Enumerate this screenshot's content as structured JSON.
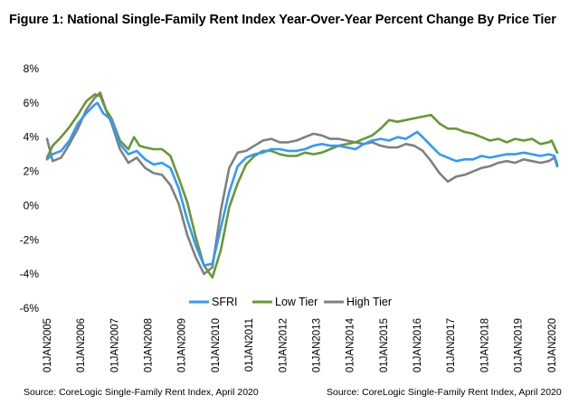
{
  "title": "Figure 1: National Single-Family Rent Index Year-Over-Year Percent Change By Price Tier",
  "sources": [
    "Source: CoreLogic Single-Family  Rent Index, April 2020",
    "Source: CoreLogic Single-Family  Rent Index, April 2020"
  ],
  "chart_data": {
    "type": "line",
    "title": "Figure 1: National Single-Family Rent Index Year-Over-Year Percent Change By Price Tier",
    "xlabel": "",
    "ylabel": "",
    "ylim": [
      -6,
      8
    ],
    "xlim": [
      "2005-01",
      "2020-03"
    ],
    "y_ticks": [
      "8%",
      "6%",
      "4%",
      "2%",
      "0%",
      "-2%",
      "-4%",
      "-6%"
    ],
    "x_ticks": [
      "01JAN2005",
      "01JAN2006",
      "01JAN2007",
      "01JAN2008",
      "01JAN2009",
      "01JAN2010",
      "01JAN2011",
      "01JAN2012",
      "01JAN2013",
      "01JAN2014",
      "01JAN2015",
      "01JAN2016",
      "01JAN2017",
      "01JAN2018",
      "01JAN2019",
      "01JAN2020"
    ],
    "grid": false,
    "legend_position": "bottom",
    "series": [
      {
        "name": "SFRI",
        "color": "#3399ff",
        "points": [
          [
            "2005-01",
            2.7
          ],
          [
            "2005-03",
            3.0
          ],
          [
            "2005-06",
            3.2
          ],
          [
            "2005-09",
            3.8
          ],
          [
            "2005-12",
            4.8
          ],
          [
            "2006-03",
            5.4
          ],
          [
            "2006-06",
            5.9
          ],
          [
            "2006-07",
            6.0
          ],
          [
            "2006-09",
            5.4
          ],
          [
            "2006-12",
            5.0
          ],
          [
            "2007-03",
            3.6
          ],
          [
            "2007-06",
            3.0
          ],
          [
            "2007-09",
            3.2
          ],
          [
            "2007-12",
            2.7
          ],
          [
            "2008-03",
            2.4
          ],
          [
            "2008-06",
            2.5
          ],
          [
            "2008-09",
            2.2
          ],
          [
            "2008-12",
            1.0
          ],
          [
            "2009-03",
            -0.8
          ],
          [
            "2009-06",
            -2.3
          ],
          [
            "2009-09",
            -3.5
          ],
          [
            "2009-12",
            -3.4
          ],
          [
            "2010-03",
            -1.3
          ],
          [
            "2010-06",
            0.8
          ],
          [
            "2010-09",
            2.3
          ],
          [
            "2010-12",
            2.8
          ],
          [
            "2011-03",
            3.0
          ],
          [
            "2011-06",
            3.1
          ],
          [
            "2011-09",
            3.3
          ],
          [
            "2011-12",
            3.3
          ],
          [
            "2012-03",
            3.2
          ],
          [
            "2012-06",
            3.2
          ],
          [
            "2012-09",
            3.3
          ],
          [
            "2012-12",
            3.5
          ],
          [
            "2013-03",
            3.6
          ],
          [
            "2013-06",
            3.5
          ],
          [
            "2013-09",
            3.5
          ],
          [
            "2013-12",
            3.4
          ],
          [
            "2014-03",
            3.3
          ],
          [
            "2014-06",
            3.6
          ],
          [
            "2014-09",
            3.8
          ],
          [
            "2014-12",
            3.9
          ],
          [
            "2015-03",
            3.8
          ],
          [
            "2015-06",
            4.0
          ],
          [
            "2015-09",
            3.9
          ],
          [
            "2015-12",
            4.2
          ],
          [
            "2016-01",
            4.3
          ],
          [
            "2016-03",
            4.0
          ],
          [
            "2016-06",
            3.5
          ],
          [
            "2016-09",
            3.0
          ],
          [
            "2016-12",
            2.8
          ],
          [
            "2017-03",
            2.6
          ],
          [
            "2017-06",
            2.7
          ],
          [
            "2017-09",
            2.7
          ],
          [
            "2017-12",
            2.9
          ],
          [
            "2018-03",
            2.8
          ],
          [
            "2018-06",
            2.9
          ],
          [
            "2018-09",
            3.0
          ],
          [
            "2018-12",
            3.0
          ],
          [
            "2019-03",
            3.1
          ],
          [
            "2019-06",
            3.0
          ],
          [
            "2019-09",
            2.9
          ],
          [
            "2019-12",
            3.0
          ],
          [
            "2020-02",
            2.9
          ],
          [
            "2020-03",
            2.4
          ]
        ]
      },
      {
        "name": "Low Tier",
        "color": "#669933",
        "points": [
          [
            "2005-01",
            2.8
          ],
          [
            "2005-03",
            3.5
          ],
          [
            "2005-06",
            4.0
          ],
          [
            "2005-09",
            4.6
          ],
          [
            "2005-12",
            5.3
          ],
          [
            "2006-03",
            6.1
          ],
          [
            "2006-06",
            6.5
          ],
          [
            "2006-08",
            6.4
          ],
          [
            "2006-10",
            5.6
          ],
          [
            "2006-12",
            5.1
          ],
          [
            "2007-03",
            3.8
          ],
          [
            "2007-06",
            3.3
          ],
          [
            "2007-08",
            4.0
          ],
          [
            "2007-10",
            3.5
          ],
          [
            "2007-12",
            3.4
          ],
          [
            "2008-03",
            3.3
          ],
          [
            "2008-06",
            3.3
          ],
          [
            "2008-09",
            2.9
          ],
          [
            "2008-12",
            1.6
          ],
          [
            "2009-03",
            0.2
          ],
          [
            "2009-06",
            -1.8
          ],
          [
            "2009-09",
            -3.5
          ],
          [
            "2009-12",
            -4.2
          ],
          [
            "2010-03",
            -2.6
          ],
          [
            "2010-06",
            -0.1
          ],
          [
            "2010-09",
            1.3
          ],
          [
            "2010-12",
            2.4
          ],
          [
            "2011-03",
            2.9
          ],
          [
            "2011-06",
            3.2
          ],
          [
            "2011-09",
            3.2
          ],
          [
            "2011-12",
            3.0
          ],
          [
            "2012-03",
            2.9
          ],
          [
            "2012-06",
            2.9
          ],
          [
            "2012-09",
            3.1
          ],
          [
            "2012-12",
            3.0
          ],
          [
            "2013-03",
            3.1
          ],
          [
            "2013-06",
            3.3
          ],
          [
            "2013-09",
            3.5
          ],
          [
            "2013-12",
            3.6
          ],
          [
            "2014-03",
            3.7
          ],
          [
            "2014-06",
            3.9
          ],
          [
            "2014-09",
            4.1
          ],
          [
            "2014-12",
            4.5
          ],
          [
            "2015-03",
            5.0
          ],
          [
            "2015-06",
            4.9
          ],
          [
            "2015-09",
            5.0
          ],
          [
            "2015-12",
            5.1
          ],
          [
            "2016-03",
            5.2
          ],
          [
            "2016-06",
            5.3
          ],
          [
            "2016-09",
            4.8
          ],
          [
            "2016-12",
            4.5
          ],
          [
            "2017-03",
            4.5
          ],
          [
            "2017-06",
            4.3
          ],
          [
            "2017-09",
            4.2
          ],
          [
            "2017-12",
            4.0
          ],
          [
            "2018-03",
            3.8
          ],
          [
            "2018-06",
            3.9
          ],
          [
            "2018-09",
            3.7
          ],
          [
            "2018-12",
            3.9
          ],
          [
            "2019-03",
            3.8
          ],
          [
            "2019-06",
            3.9
          ],
          [
            "2019-09",
            3.6
          ],
          [
            "2019-12",
            3.7
          ],
          [
            "2020-01",
            3.8
          ],
          [
            "2020-03",
            3.1
          ]
        ]
      },
      {
        "name": "High Tier",
        "color": "#808080",
        "points": [
          [
            "2005-01",
            3.9
          ],
          [
            "2005-03",
            2.6
          ],
          [
            "2005-06",
            2.8
          ],
          [
            "2005-09",
            3.6
          ],
          [
            "2005-12",
            4.5
          ],
          [
            "2006-03",
            5.6
          ],
          [
            "2006-06",
            6.3
          ],
          [
            "2006-08",
            6.6
          ],
          [
            "2006-10",
            5.6
          ],
          [
            "2006-12",
            4.8
          ],
          [
            "2007-03",
            3.3
          ],
          [
            "2007-06",
            2.5
          ],
          [
            "2007-09",
            2.8
          ],
          [
            "2007-12",
            2.2
          ],
          [
            "2008-03",
            1.9
          ],
          [
            "2008-06",
            1.8
          ],
          [
            "2008-09",
            1.2
          ],
          [
            "2008-12",
            0.1
          ],
          [
            "2009-03",
            -1.7
          ],
          [
            "2009-06",
            -3.0
          ],
          [
            "2009-09",
            -4.0
          ],
          [
            "2009-12",
            -3.6
          ],
          [
            "2010-03",
            -0.3
          ],
          [
            "2010-06",
            2.2
          ],
          [
            "2010-09",
            3.1
          ],
          [
            "2010-12",
            3.2
          ],
          [
            "2011-03",
            3.5
          ],
          [
            "2011-06",
            3.8
          ],
          [
            "2011-09",
            3.9
          ],
          [
            "2011-12",
            3.7
          ],
          [
            "2012-03",
            3.7
          ],
          [
            "2012-06",
            3.8
          ],
          [
            "2012-09",
            4.0
          ],
          [
            "2012-12",
            4.2
          ],
          [
            "2013-03",
            4.1
          ],
          [
            "2013-06",
            3.9
          ],
          [
            "2013-09",
            3.9
          ],
          [
            "2013-12",
            3.8
          ],
          [
            "2014-03",
            3.7
          ],
          [
            "2014-06",
            3.6
          ],
          [
            "2014-09",
            3.7
          ],
          [
            "2014-12",
            3.5
          ],
          [
            "2015-03",
            3.4
          ],
          [
            "2015-06",
            3.4
          ],
          [
            "2015-09",
            3.6
          ],
          [
            "2015-12",
            3.5
          ],
          [
            "2016-03",
            3.2
          ],
          [
            "2016-06",
            2.6
          ],
          [
            "2016-09",
            1.9
          ],
          [
            "2016-12",
            1.4
          ],
          [
            "2017-03",
            1.7
          ],
          [
            "2017-06",
            1.8
          ],
          [
            "2017-09",
            2.0
          ],
          [
            "2017-12",
            2.2
          ],
          [
            "2018-03",
            2.3
          ],
          [
            "2018-06",
            2.5
          ],
          [
            "2018-09",
            2.6
          ],
          [
            "2018-12",
            2.5
          ],
          [
            "2019-03",
            2.7
          ],
          [
            "2019-06",
            2.6
          ],
          [
            "2019-09",
            2.5
          ],
          [
            "2019-12",
            2.6
          ],
          [
            "2020-02",
            2.8
          ],
          [
            "2020-03",
            2.3
          ]
        ]
      }
    ]
  }
}
